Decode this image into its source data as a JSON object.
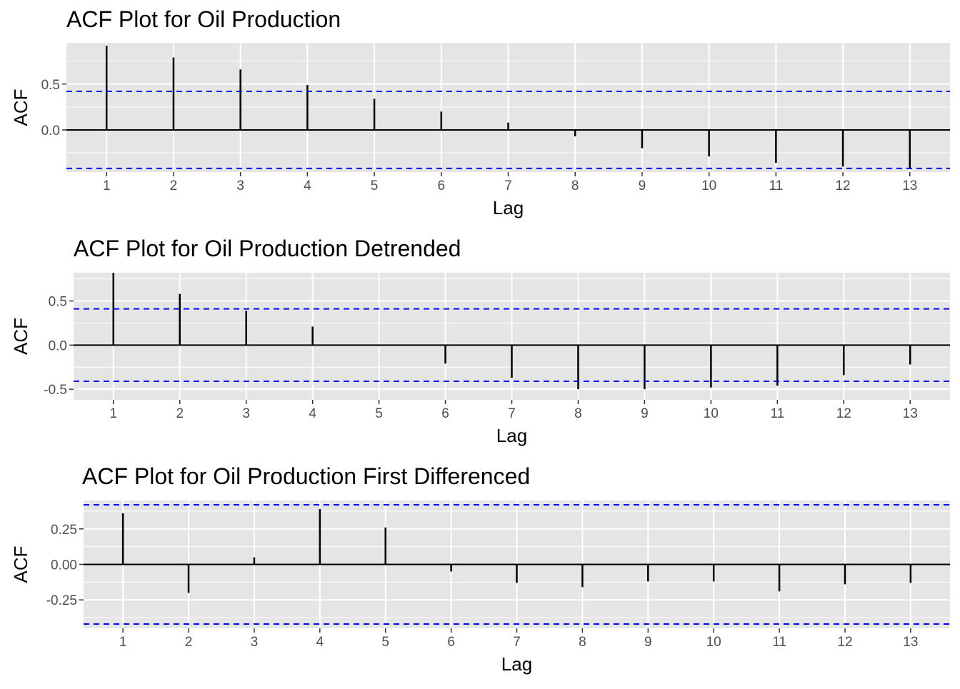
{
  "chart_data": [
    {
      "type": "bar",
      "title": "ACF Plot for Oil Production",
      "xlabel": "Lag",
      "ylabel": "ACF",
      "x": [
        1,
        2,
        3,
        4,
        5,
        6,
        7,
        8,
        9,
        10,
        11,
        12,
        13
      ],
      "values": [
        0.92,
        0.79,
        0.66,
        0.49,
        0.34,
        0.2,
        0.08,
        -0.07,
        -0.2,
        -0.29,
        -0.36,
        -0.4,
        -0.42
      ],
      "confidence_bound": 0.42,
      "yticks": [
        0.0,
        0.5
      ],
      "ytick_labels": [
        "0.0",
        "0.5"
      ],
      "ylim": [
        -0.46,
        0.95
      ],
      "xlim": [
        0.4,
        13.6
      ],
      "grid": true,
      "colors": {
        "bars": "#000000",
        "bounds": "#0000ff",
        "panel": "#e5e5e5",
        "grid": "#ffffff"
      }
    },
    {
      "type": "bar",
      "title": "ACF Plot for Oil Production Detrended",
      "xlabel": "Lag",
      "ylabel": "ACF",
      "x": [
        1,
        2,
        3,
        4,
        5,
        6,
        7,
        8,
        9,
        10,
        11,
        12,
        13
      ],
      "values": [
        0.82,
        0.58,
        0.39,
        0.21,
        -0.01,
        -0.21,
        -0.37,
        -0.5,
        -0.5,
        -0.48,
        -0.46,
        -0.34,
        -0.22
      ],
      "confidence_bound": 0.41,
      "yticks": [
        -0.5,
        0.0,
        0.5
      ],
      "ytick_labels": [
        "-0.5",
        "0.0",
        "0.5"
      ],
      "ylim": [
        -0.62,
        0.82
      ],
      "xlim": [
        0.4,
        13.6
      ],
      "grid": true,
      "colors": {
        "bars": "#000000",
        "bounds": "#0000ff",
        "panel": "#e5e5e5",
        "grid": "#ffffff"
      }
    },
    {
      "type": "bar",
      "title": "ACF Plot for Oil Production First Differenced",
      "xlabel": "Lag",
      "ylabel": "ACF",
      "x": [
        1,
        2,
        3,
        4,
        5,
        6,
        7,
        8,
        9,
        10,
        11,
        12,
        13
      ],
      "values": [
        0.36,
        -0.2,
        0.05,
        0.39,
        0.26,
        -0.05,
        -0.13,
        -0.16,
        -0.12,
        -0.12,
        -0.19,
        -0.14,
        -0.13
      ],
      "confidence_bound": 0.42,
      "yticks": [
        -0.25,
        0.0,
        0.25
      ],
      "ytick_labels": [
        "-0.25",
        "0.00",
        "0.25"
      ],
      "ylim": [
        -0.45,
        0.45
      ],
      "xlim": [
        0.4,
        13.6
      ],
      "grid": true,
      "colors": {
        "bars": "#000000",
        "bounds": "#0000ff",
        "panel": "#e5e5e5",
        "grid": "#ffffff"
      }
    }
  ]
}
